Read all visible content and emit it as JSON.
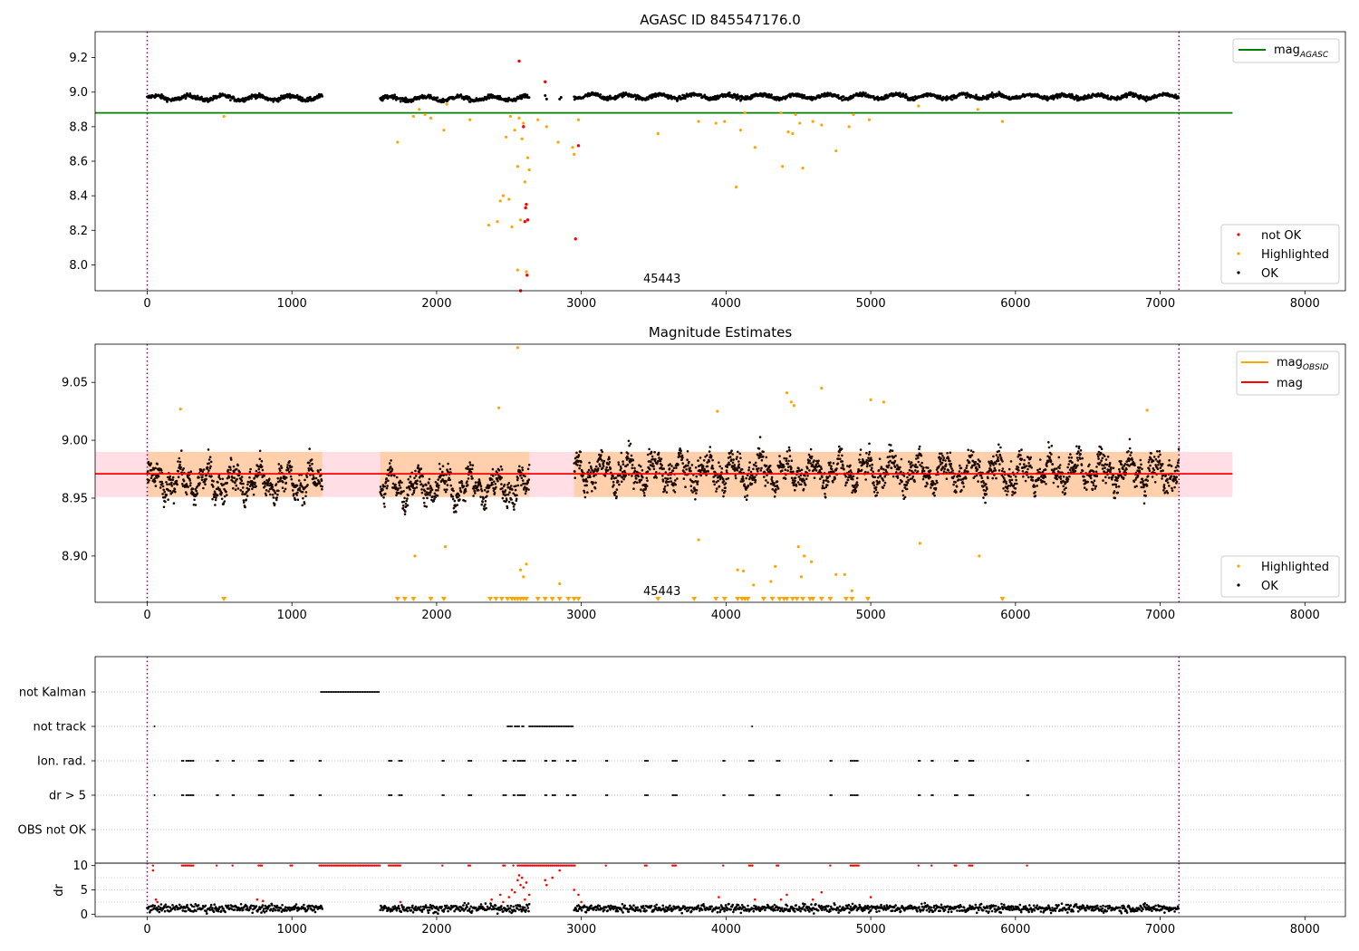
{
  "panels": {
    "p1": {
      "title": "AGASC ID 845547176.0",
      "annotation": "45443",
      "legend_line": {
        "label": "mag",
        "subscript": "AGASC",
        "color": "#008000"
      },
      "legend_points": [
        {
          "label": "not OK",
          "color": "#ff0000"
        },
        {
          "label": "Highlighted",
          "color": "#ffa500"
        },
        {
          "label": "OK",
          "color": "#000000"
        }
      ]
    },
    "p2": {
      "title": "Magnitude Estimates",
      "annotation": "45443",
      "legend_lines": [
        {
          "label": "mag",
          "subscript": "OBSID",
          "color": "#ffa500"
        },
        {
          "label": "mag",
          "subscript": "",
          "color": "#ff0000"
        }
      ],
      "legend_points": [
        {
          "label": "Highlighted",
          "color": "#ffa500"
        },
        {
          "label": "OK",
          "color": "#000000"
        }
      ]
    },
    "p3": {
      "flag_labels": [
        "not Kalman",
        "not track",
        "Ion. rad.",
        "dr > 5",
        "OBS not OK"
      ]
    },
    "p4": {
      "ylabel": "dr"
    }
  },
  "chart_data": [
    {
      "type": "scatter",
      "title": "AGASC ID 845547176.0",
      "xlim": [
        -360,
        8280
      ],
      "ylim": [
        7.85,
        9.35
      ],
      "xticks": [
        0,
        1000,
        2000,
        3000,
        4000,
        5000,
        6000,
        7000,
        8000
      ],
      "yticks": [
        8.0,
        8.2,
        8.4,
        8.6,
        8.8,
        9.0,
        9.2
      ],
      "vlines": [
        0,
        7130
      ],
      "hline": {
        "name": "mag_AGASC",
        "y": 8.88,
        "x": [
          -360,
          7500
        ]
      },
      "ok_segments": [
        {
          "x": [
            0,
            1210
          ],
          "center": 8.967
        },
        {
          "x": [
            1610,
            2640
          ],
          "center": 8.963
        },
        {
          "x": [
            2950,
            7130
          ],
          "center": 8.975
        }
      ],
      "highlighted": [
        [
          530,
          8.86
        ],
        [
          1730,
          8.71
        ],
        [
          1840,
          8.86
        ],
        [
          1880,
          8.9
        ],
        [
          1920,
          8.87
        ],
        [
          1960,
          8.85
        ],
        [
          2050,
          8.78
        ],
        [
          2070,
          8.93
        ],
        [
          2230,
          8.84
        ],
        [
          2360,
          8.23
        ],
        [
          2420,
          8.25
        ],
        [
          2440,
          8.37
        ],
        [
          2460,
          8.4
        ],
        [
          2480,
          8.74
        ],
        [
          2500,
          8.38
        ],
        [
          2510,
          8.86
        ],
        [
          2520,
          8.22
        ],
        [
          2540,
          8.78
        ],
        [
          2560,
          8.57
        ],
        [
          2560,
          7.97
        ],
        [
          2570,
          8.85
        ],
        [
          2580,
          8.26
        ],
        [
          2590,
          8.73
        ],
        [
          2600,
          8.82
        ],
        [
          2610,
          8.48
        ],
        [
          2620,
          7.96
        ],
        [
          2630,
          8.62
        ],
        [
          2640,
          8.55
        ],
        [
          2700,
          8.84
        ],
        [
          2760,
          8.8
        ],
        [
          2840,
          8.71
        ],
        [
          2940,
          8.68
        ],
        [
          2950,
          8.64
        ],
        [
          2980,
          8.84
        ],
        [
          3530,
          8.76
        ],
        [
          3810,
          8.83
        ],
        [
          3930,
          8.82
        ],
        [
          3990,
          8.83
        ],
        [
          4070,
          8.45
        ],
        [
          4100,
          8.78
        ],
        [
          4130,
          8.88
        ],
        [
          4200,
          8.68
        ],
        [
          4380,
          8.88
        ],
        [
          4390,
          8.57
        ],
        [
          4430,
          8.77
        ],
        [
          4460,
          8.76
        ],
        [
          4480,
          8.87
        ],
        [
          4510,
          8.82
        ],
        [
          4530,
          8.56
        ],
        [
          4600,
          8.83
        ],
        [
          4660,
          8.81
        ],
        [
          4760,
          8.66
        ],
        [
          4850,
          8.8
        ],
        [
          4880,
          8.87
        ],
        [
          4990,
          8.84
        ],
        [
          5330,
          8.92
        ],
        [
          5740,
          8.9
        ],
        [
          5910,
          8.83
        ]
      ],
      "not_ok": [
        [
          2570,
          9.18
        ],
        [
          2580,
          7.85
        ],
        [
          2600,
          8.8
        ],
        [
          2610,
          8.25
        ],
        [
          2615,
          8.33
        ],
        [
          2620,
          8.35
        ],
        [
          2625,
          7.94
        ],
        [
          2630,
          8.26
        ],
        [
          2750,
          9.06
        ],
        [
          2960,
          8.15
        ],
        [
          2980,
          8.69
        ]
      ],
      "extra_ok": [
        [
          2750,
          8.98
        ],
        [
          2760,
          8.96
        ],
        [
          2850,
          8.96
        ],
        [
          2860,
          8.97
        ]
      ],
      "annotation": {
        "text": "45443",
        "x": 3430,
        "y": 7.88
      }
    },
    {
      "type": "scatter",
      "title": "Magnitude Estimates",
      "xlim": [
        -360,
        8280
      ],
      "ylim": [
        8.86,
        9.083
      ],
      "xticks": [
        0,
        1000,
        2000,
        3000,
        4000,
        5000,
        6000,
        7000,
        8000
      ],
      "yticks": [
        8.9,
        8.95,
        9.0,
        9.05
      ],
      "vlines": [
        0,
        7130
      ],
      "mag_obsid_band": {
        "y": [
          8.951,
          8.99
        ],
        "color": "#ffa500"
      },
      "mag_band": {
        "y": [
          8.951,
          8.99
        ],
        "x": [
          -360,
          7500
        ],
        "color": "#ffc0cb"
      },
      "mag_line": {
        "name": "mag",
        "y": 8.971,
        "x": [
          -360,
          7500
        ]
      },
      "ok_segments": [
        {
          "x": [
            0,
            1210
          ],
          "center": 8.964
        },
        {
          "x": [
            1610,
            2640
          ],
          "center": 8.96
        },
        {
          "x": [
            2950,
            7130
          ],
          "center": 8.973
        }
      ],
      "highlighted": [
        [
          230,
          9.027
        ],
        [
          1850,
          8.9
        ],
        [
          2060,
          8.908
        ],
        [
          2430,
          9.028
        ],
        [
          2560,
          9.08
        ],
        [
          2580,
          8.888
        ],
        [
          2600,
          8.882
        ],
        [
          2620,
          8.893
        ],
        [
          2850,
          8.876
        ],
        [
          3810,
          8.914
        ],
        [
          3940,
          9.025
        ],
        [
          4080,
          8.888
        ],
        [
          4120,
          8.887
        ],
        [
          4190,
          8.875
        ],
        [
          4310,
          8.878
        ],
        [
          4340,
          8.891
        ],
        [
          4420,
          9.041
        ],
        [
          4450,
          9.033
        ],
        [
          4470,
          9.03
        ],
        [
          4500,
          8.908
        ],
        [
          4520,
          8.882
        ],
        [
          4540,
          8.9
        ],
        [
          4590,
          8.895
        ],
        [
          4660,
          9.045
        ],
        [
          4760,
          8.884
        ],
        [
          4820,
          8.884
        ],
        [
          4870,
          8.87
        ],
        [
          5000,
          9.035
        ],
        [
          5090,
          9.033
        ],
        [
          5340,
          8.911
        ],
        [
          5750,
          8.9
        ],
        [
          6910,
          9.026
        ]
      ],
      "clipped_below": [
        530,
        1730,
        1780,
        1840,
        1960,
        2050,
        2370,
        2410,
        2450,
        2490,
        2520,
        2540,
        2560,
        2580,
        2600,
        2620,
        2700,
        2750,
        2800,
        2850,
        2910,
        2950,
        2980,
        3530,
        3780,
        3930,
        3990,
        4080,
        4110,
        4130,
        4150,
        4260,
        4320,
        4370,
        4400,
        4420,
        4460,
        4490,
        4530,
        4580,
        4600,
        4660,
        4720,
        4830,
        4870,
        4980,
        5910
      ],
      "annotation": {
        "text": "45443",
        "x": 3430,
        "y": 8.865
      }
    },
    {
      "type": "scatter",
      "title": "",
      "xlim": [
        -360,
        8280
      ],
      "categories": [
        "not Kalman",
        "not track",
        "Ion. rad.",
        "dr > 5",
        "OBS not OK"
      ],
      "vlines": [
        0,
        7130
      ],
      "flags": {
        "not Kalman": [
          [
            1200,
            1610
          ]
        ],
        "not track": [
          [
            50,
            50
          ],
          [
            2490,
            2520
          ],
          [
            2540,
            2580
          ],
          [
            2590,
            2600
          ],
          [
            2640,
            2950
          ],
          [
            4180,
            4180
          ]
        ],
        "Ion. rad.": [
          [
            240,
            250
          ],
          [
            270,
            290
          ],
          [
            300,
            320
          ],
          [
            480,
            490
          ],
          [
            590,
            600
          ],
          [
            770,
            800
          ],
          [
            990,
            1010
          ],
          [
            1190,
            1200
          ],
          [
            1670,
            1690
          ],
          [
            1740,
            1760
          ],
          [
            2040,
            2050
          ],
          [
            2220,
            2240
          ],
          [
            2460,
            2480
          ],
          [
            2530,
            2540
          ],
          [
            2560,
            2620
          ],
          [
            2750,
            2760
          ],
          [
            2800,
            2820
          ],
          [
            2900,
            2910
          ],
          [
            2940,
            2960
          ],
          [
            3170,
            3180
          ],
          [
            3440,
            3460
          ],
          [
            3630,
            3660
          ],
          [
            3980,
            3990
          ],
          [
            4160,
            4190
          ],
          [
            4350,
            4370
          ],
          [
            4720,
            4730
          ],
          [
            4860,
            4920
          ],
          [
            5330,
            5340
          ],
          [
            5420,
            5430
          ],
          [
            5580,
            5600
          ],
          [
            5680,
            5710
          ],
          [
            6080,
            6090
          ]
        ],
        "dr > 5": [
          [
            50,
            50
          ],
          [
            240,
            250
          ],
          [
            270,
            290
          ],
          [
            300,
            320
          ],
          [
            480,
            490
          ],
          [
            590,
            600
          ],
          [
            770,
            800
          ],
          [
            990,
            1010
          ],
          [
            1190,
            1200
          ],
          [
            1670,
            1690
          ],
          [
            1740,
            1760
          ],
          [
            2040,
            2050
          ],
          [
            2220,
            2240
          ],
          [
            2460,
            2480
          ],
          [
            2530,
            2540
          ],
          [
            2560,
            2620
          ],
          [
            2750,
            2760
          ],
          [
            2800,
            2820
          ],
          [
            2900,
            2910
          ],
          [
            2940,
            2960
          ],
          [
            3170,
            3180
          ],
          [
            3440,
            3460
          ],
          [
            3630,
            3660
          ],
          [
            3980,
            3990
          ],
          [
            4160,
            4190
          ],
          [
            4350,
            4370
          ],
          [
            4720,
            4730
          ],
          [
            4860,
            4920
          ],
          [
            5330,
            5340
          ],
          [
            5420,
            5430
          ],
          [
            5580,
            5600
          ],
          [
            5680,
            5710
          ],
          [
            6080,
            6090
          ]
        ],
        "OBS not OK": []
      }
    },
    {
      "type": "scatter",
      "title": "",
      "ylabel": "dr",
      "xlim": [
        -360,
        8280
      ],
      "ylim": [
        -0.5,
        10.5
      ],
      "xticks": [
        0,
        1000,
        2000,
        3000,
        4000,
        5000,
        6000,
        7000,
        8000
      ],
      "yticks": [
        0,
        5,
        10
      ],
      "vlines": [
        0,
        7130
      ],
      "ok_segments": [
        {
          "x": [
            0,
            1210
          ],
          "center": 1.2
        },
        {
          "x": [
            1610,
            2640
          ],
          "center": 1.2
        },
        {
          "x": [
            2950,
            7130
          ],
          "center": 1.2
        }
      ],
      "capped_at_10": [
        [
          40,
          40
        ],
        [
          240,
          320
        ],
        [
          480,
          490
        ],
        [
          590,
          600
        ],
        [
          770,
          800
        ],
        [
          990,
          1010
        ],
        [
          1190,
          1610
        ],
        [
          1670,
          1760
        ],
        [
          2040,
          2050
        ],
        [
          2220,
          2240
        ],
        [
          2460,
          2480
        ],
        [
          2530,
          2540
        ],
        [
          2560,
          2960
        ],
        [
          3170,
          3180
        ],
        [
          3440,
          3460
        ],
        [
          3630,
          3660
        ],
        [
          3980,
          3990
        ],
        [
          4160,
          4190
        ],
        [
          4350,
          4370
        ],
        [
          4720,
          4730
        ],
        [
          4860,
          4920
        ],
        [
          5330,
          5340
        ],
        [
          5420,
          5430
        ],
        [
          5580,
          5600
        ],
        [
          5680,
          5710
        ],
        [
          6080,
          6090
        ]
      ],
      "red_points": [
        [
          40,
          9
        ],
        [
          60,
          3
        ],
        [
          70,
          2.5
        ],
        [
          760,
          3
        ],
        [
          800,
          2.7
        ],
        [
          1750,
          2.5
        ],
        [
          2380,
          3
        ],
        [
          2440,
          4
        ],
        [
          2460,
          2.5
        ],
        [
          2500,
          3.5
        ],
        [
          2520,
          5
        ],
        [
          2540,
          4.5
        ],
        [
          2560,
          7
        ],
        [
          2570,
          8
        ],
        [
          2580,
          6
        ],
        [
          2590,
          7.5
        ],
        [
          2600,
          5.5
        ],
        [
          2610,
          3
        ],
        [
          2620,
          6.5
        ],
        [
          2640,
          4
        ],
        [
          2750,
          7
        ],
        [
          2760,
          6
        ],
        [
          2800,
          7.5
        ],
        [
          2850,
          9
        ],
        [
          2950,
          5
        ],
        [
          2980,
          4
        ],
        [
          3000,
          2.5
        ],
        [
          3950,
          3.5
        ],
        [
          4200,
          3
        ],
        [
          4380,
          3
        ],
        [
          4420,
          4
        ],
        [
          4600,
          3
        ],
        [
          4660,
          4.5
        ],
        [
          5000,
          3.5
        ]
      ]
    }
  ]
}
